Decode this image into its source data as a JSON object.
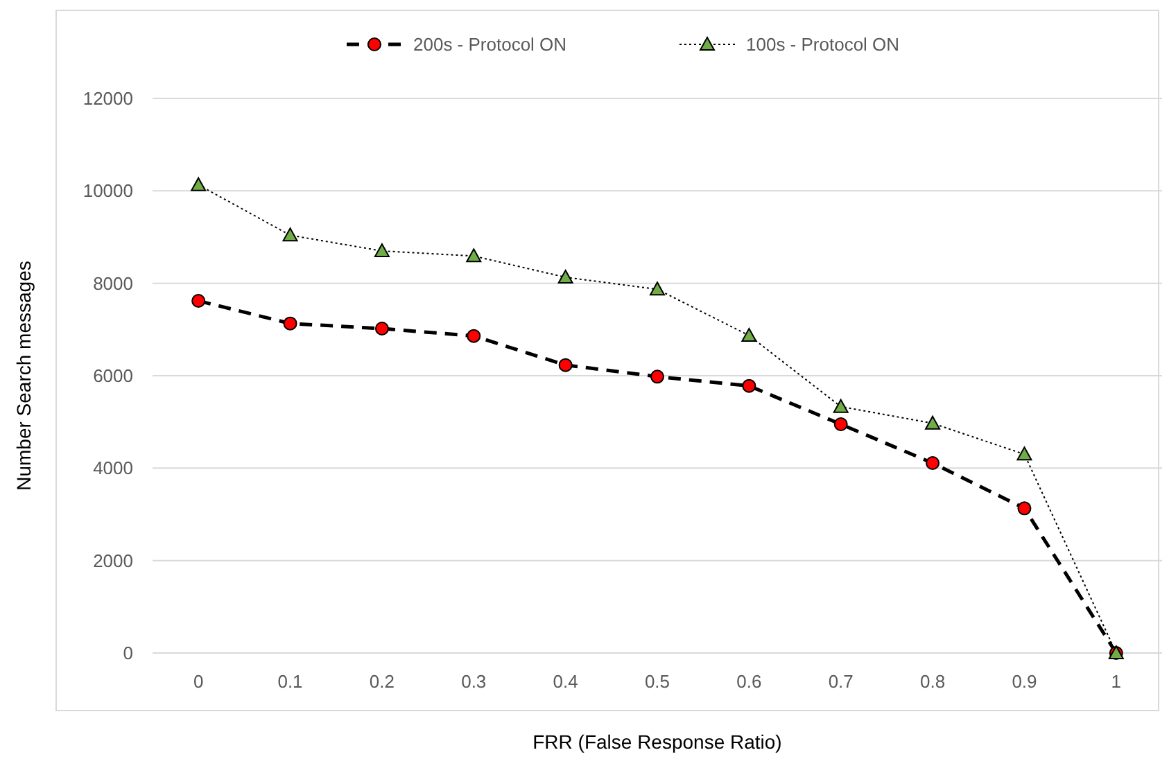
{
  "chart_data": {
    "type": "line",
    "xlabel": "FRR (False Response Ratio)",
    "ylabel": "Number Search messages",
    "categories": [
      "0",
      "0.1",
      "0.2",
      "0.3",
      "0.4",
      "0.5",
      "0.6",
      "0.7",
      "0.8",
      "0.9",
      "1"
    ],
    "series": [
      {
        "name": "200s - Protocol ON",
        "color": "#ff0000",
        "marker": "circle",
        "line_style": "dashed",
        "values": [
          7620,
          7130,
          7020,
          6860,
          6230,
          5980,
          5780,
          4950,
          4110,
          3130,
          0
        ]
      },
      {
        "name": "100s - Protocol ON",
        "color": "#70ad47",
        "marker": "triangle",
        "line_style": "dotted",
        "values": [
          10130,
          9040,
          8700,
          8590,
          8130,
          7870,
          6870,
          5330,
          4970,
          4300,
          0
        ]
      }
    ],
    "ylim": [
      0,
      12000
    ],
    "yticks": [
      0,
      2000,
      4000,
      6000,
      8000,
      10000,
      12000
    ],
    "grid": "y",
    "legend": "top"
  }
}
